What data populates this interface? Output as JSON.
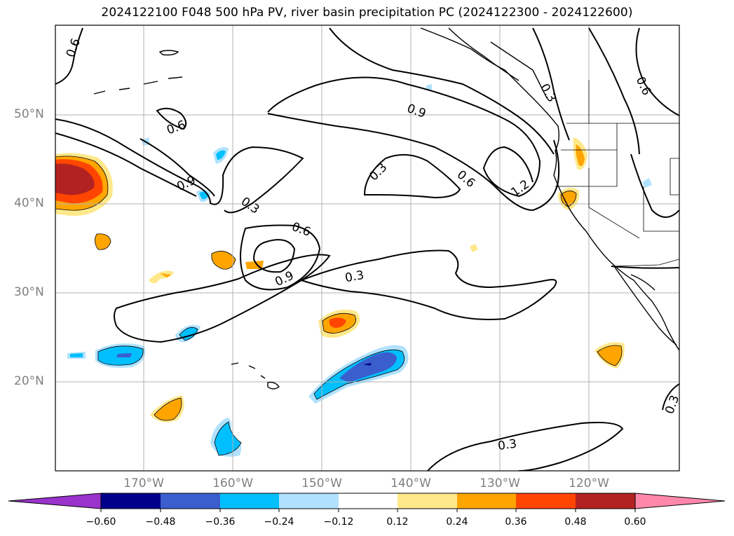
{
  "title": "2024122100 F048 500 hPa PV, river basin precipitation PC (2024122300 - 2024122600)",
  "latitude_labels": [
    "50°N",
    "40°N",
    "30°N",
    "20°N"
  ],
  "longitude_labels": [
    "170°W",
    "160°W",
    "150°W",
    "140°W",
    "130°W",
    "120°W"
  ],
  "contour_labels": [
    "0.6",
    "0.6",
    "0.9",
    "0.3",
    "0.6",
    "0.9",
    "0.3",
    "0.9",
    "0.3",
    "0.6",
    "1.2",
    "0.3",
    "0.6",
    "0.3",
    "0.3"
  ],
  "colorbar": {
    "tick_labels": [
      "−0.60",
      "−0.48",
      "−0.36",
      "−0.24",
      "−0.12",
      "0.12",
      "0.24",
      "0.36",
      "0.48",
      "0.60"
    ],
    "colors": [
      "#9933cc",
      "#00008b",
      "#3a5fcd",
      "#00bfff",
      "#b0e2ff",
      "#ffffff",
      "#ffe88a",
      "#ffa500",
      "#ff4500",
      "#b22222",
      "#ff88aa"
    ]
  },
  "colors": {
    "coast": "#000000",
    "contour": "#000000",
    "grid": "#b0b0b0",
    "axis_label": "#808080"
  }
}
